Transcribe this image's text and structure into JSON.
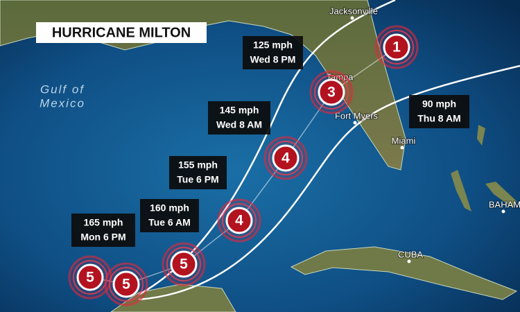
{
  "title": "HURRICANE MILTON",
  "water_label": [
    "Gulf of",
    "Mexico"
  ],
  "places": [
    "Jacksonville",
    "Tampa",
    "Fort Myers",
    "Miami",
    "CUBA",
    "BAHAM"
  ],
  "markers": [
    {
      "category": 5
    },
    {
      "category": 5
    },
    {
      "category": 5
    },
    {
      "category": 4
    },
    {
      "category": 4
    },
    {
      "category": 3
    },
    {
      "category": 1
    }
  ],
  "callouts": [
    {
      "speed": "165 mph",
      "time": "Mon 6 PM"
    },
    {
      "speed": "160 mph",
      "time": "Tue 6 AM"
    },
    {
      "speed": "155 mph",
      "time": "Tue 6 PM"
    },
    {
      "speed": "145 mph",
      "time": "Wed 8 AM"
    },
    {
      "speed": "125 mph",
      "time": "Wed 8 PM"
    },
    {
      "speed": "90 mph",
      "time": "Thu 8 AM"
    }
  ]
}
